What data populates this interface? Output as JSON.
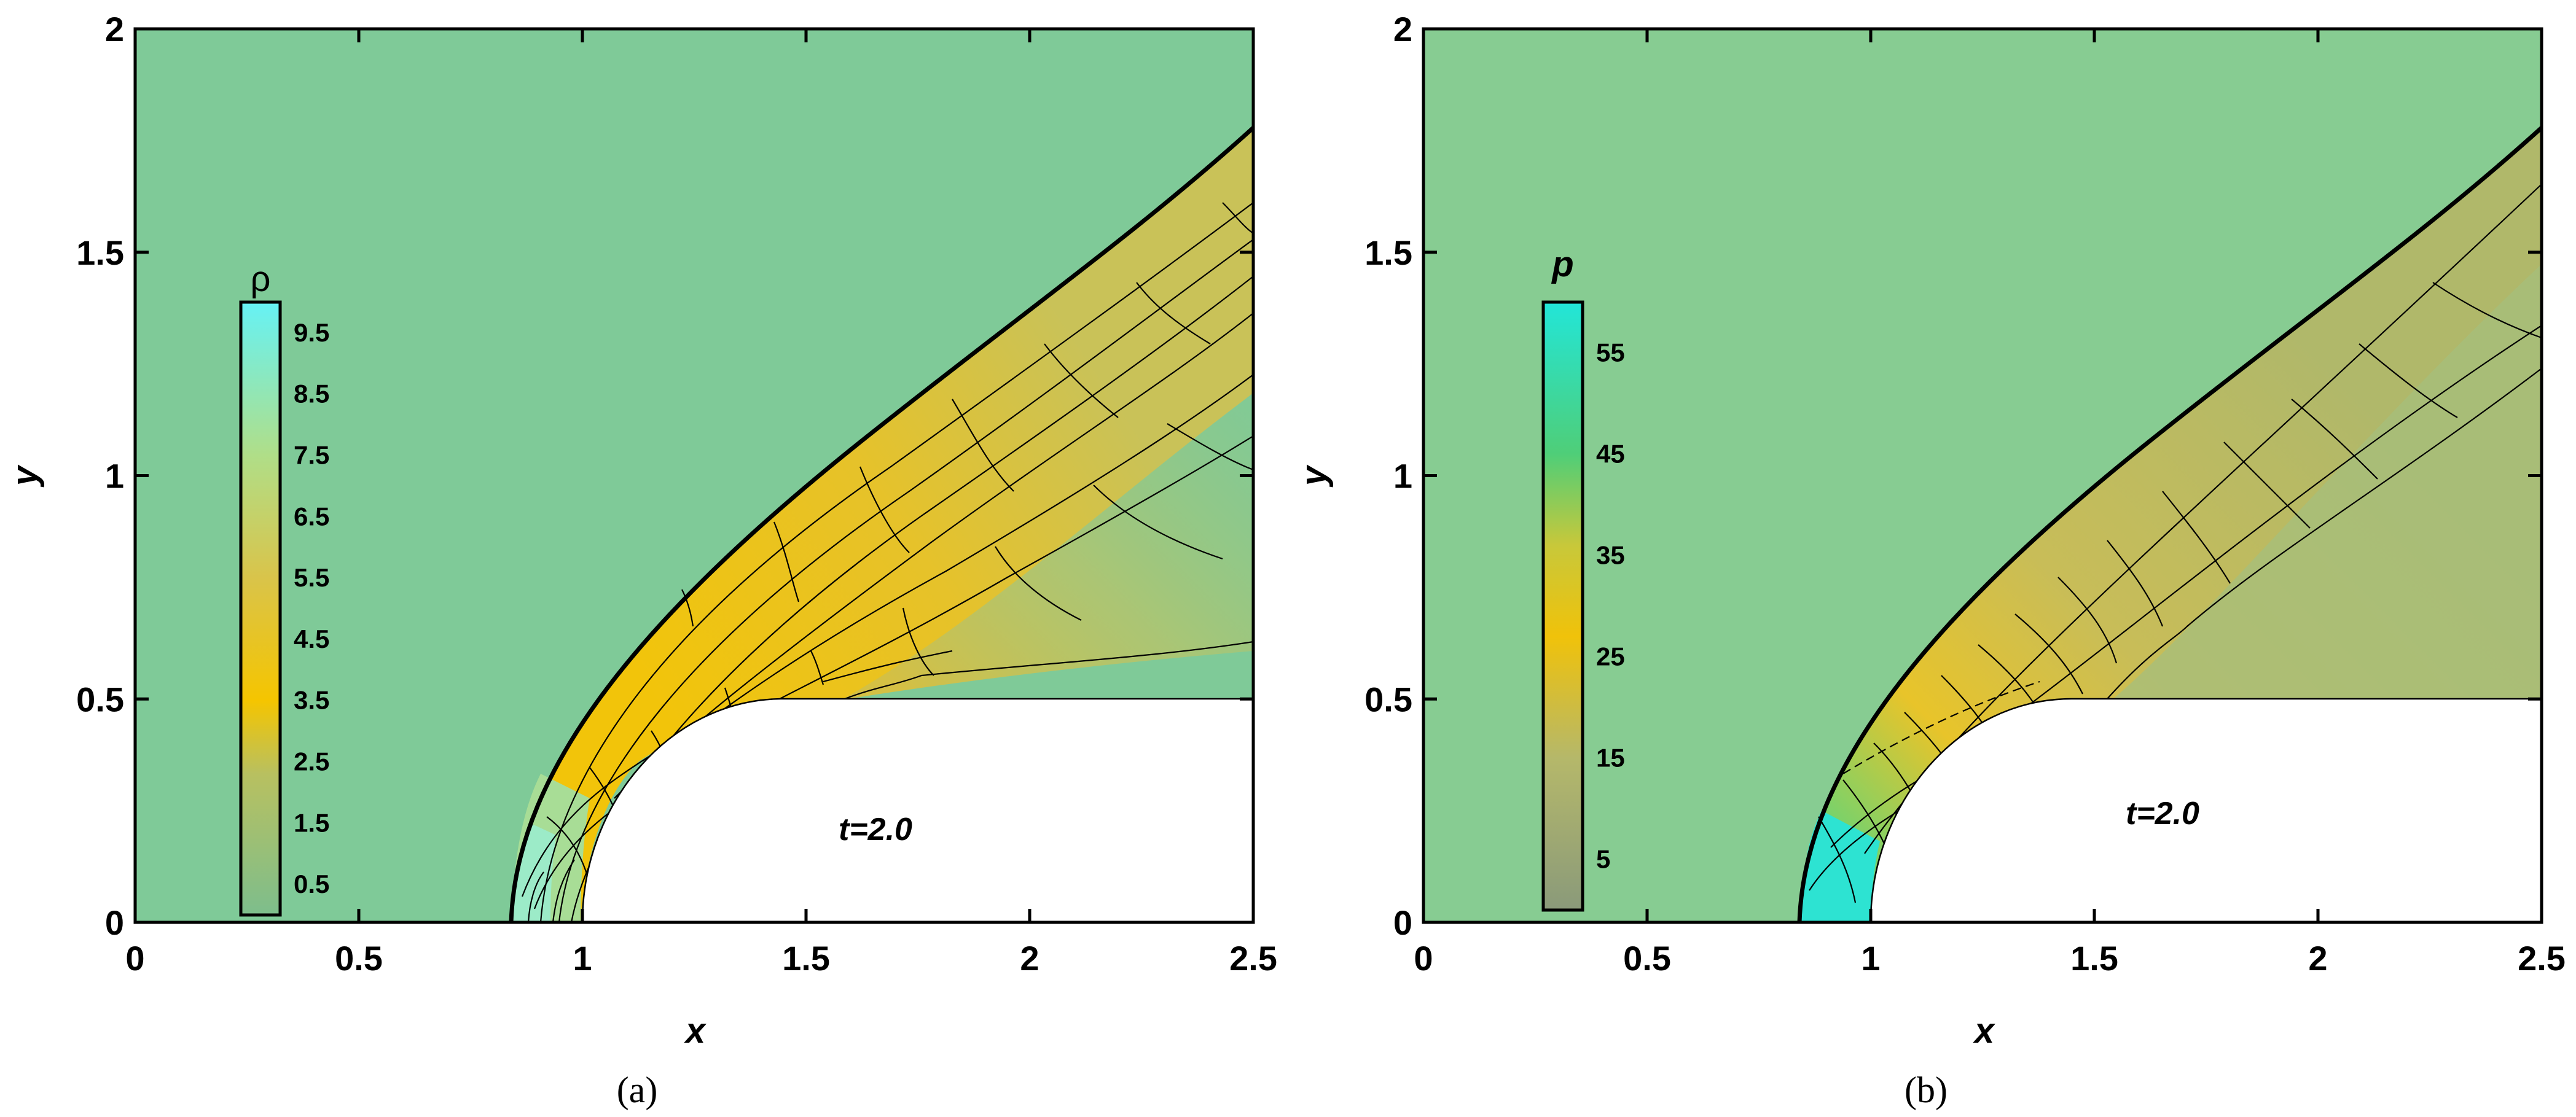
{
  "chart_data": [
    {
      "type": "heatmap",
      "panel_label": "(a)",
      "xlabel": "x",
      "ylabel": "y",
      "xlim": [
        0,
        2.5
      ],
      "ylim": [
        0,
        2
      ],
      "xticks": [
        "0",
        "0.5",
        "1",
        "1.5",
        "2",
        "2.5"
      ],
      "yticks": [
        "0",
        "0.5",
        "1",
        "1.5",
        "2"
      ],
      "annotation": "t=2.0",
      "field": "density",
      "colorbar": {
        "title": "ρ",
        "labels": [
          "9.5",
          "8.5",
          "7.5",
          "6.5",
          "5.5",
          "4.5",
          "3.5",
          "2.5",
          "1.5",
          "0.5"
        ],
        "range": [
          0,
          10
        ],
        "stops": [
          {
            "value": 0,
            "color": "#7dbe8c"
          },
          {
            "value": 2.3,
            "color": "#b8c060"
          },
          {
            "value": 3.5,
            "color": "#f5c500"
          },
          {
            "value": 5.5,
            "color": "#d9c44a"
          },
          {
            "value": 7.5,
            "color": "#b0de88"
          },
          {
            "value": 10,
            "color": "#66f2f5"
          }
        ]
      },
      "obstacle": {
        "x_start": 1.0,
        "cylinder_radius": 0.5,
        "top_y": 0.5
      },
      "shock": {
        "standoff_x": 0.84,
        "exit_y": 1.77
      },
      "grid": false
    },
    {
      "type": "heatmap",
      "panel_label": "(b)",
      "xlabel": "x",
      "ylabel": "y",
      "xlim": [
        0,
        2.5
      ],
      "ylim": [
        0,
        2
      ],
      "xticks": [
        "0",
        "0.5",
        "1",
        "1.5",
        "2",
        "2.5"
      ],
      "yticks": [
        "0",
        "0.5",
        "1",
        "1.5",
        "2"
      ],
      "annotation": "t=2.0",
      "field": "pressure",
      "colorbar": {
        "title": "p",
        "labels": [
          "55",
          "45",
          "35",
          "25",
          "15",
          "5"
        ],
        "range": [
          0,
          60
        ],
        "stops": [
          {
            "value": 0,
            "color": "#8a9a7a"
          },
          {
            "value": 15,
            "color": "#b5b86a"
          },
          {
            "value": 27,
            "color": "#f0c20a"
          },
          {
            "value": 36,
            "color": "#c8c83a"
          },
          {
            "value": 45,
            "color": "#4fce78"
          },
          {
            "value": 60,
            "color": "#22e6d8"
          }
        ]
      },
      "obstacle": {
        "x_start": 1.0,
        "cylinder_radius": 0.5,
        "top_y": 0.5
      },
      "shock": {
        "standoff_x": 0.84,
        "exit_y": 1.77
      },
      "grid": false
    }
  ]
}
